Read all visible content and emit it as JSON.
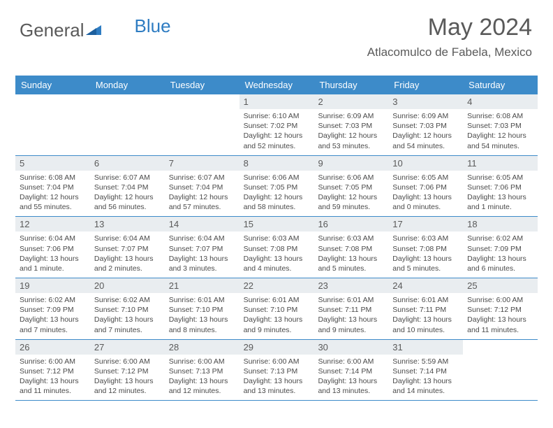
{
  "logo": {
    "text1": "General",
    "text2": "Blue",
    "color1": "#5a5a5a",
    "color2": "#2e7cc2"
  },
  "header": {
    "title": "May 2024",
    "location": "Atlacomulco de Fabela, Mexico"
  },
  "dayNames": [
    "Sunday",
    "Monday",
    "Tuesday",
    "Wednesday",
    "Thursday",
    "Friday",
    "Saturday"
  ],
  "colors": {
    "headerBg": "#3d8bc9",
    "headerText": "#ffffff",
    "daynumBg": "#e9edf0",
    "textColor": "#5a5a5a",
    "borderColor": "#3d8bc9"
  },
  "weeks": [
    [
      {
        "n": "",
        "lines": []
      },
      {
        "n": "",
        "lines": []
      },
      {
        "n": "",
        "lines": []
      },
      {
        "n": "1",
        "lines": [
          "Sunrise: 6:10 AM",
          "Sunset: 7:02 PM",
          "Daylight: 12 hours",
          "and 52 minutes."
        ]
      },
      {
        "n": "2",
        "lines": [
          "Sunrise: 6:09 AM",
          "Sunset: 7:03 PM",
          "Daylight: 12 hours",
          "and 53 minutes."
        ]
      },
      {
        "n": "3",
        "lines": [
          "Sunrise: 6:09 AM",
          "Sunset: 7:03 PM",
          "Daylight: 12 hours",
          "and 54 minutes."
        ]
      },
      {
        "n": "4",
        "lines": [
          "Sunrise: 6:08 AM",
          "Sunset: 7:03 PM",
          "Daylight: 12 hours",
          "and 54 minutes."
        ]
      }
    ],
    [
      {
        "n": "5",
        "lines": [
          "Sunrise: 6:08 AM",
          "Sunset: 7:04 PM",
          "Daylight: 12 hours",
          "and 55 minutes."
        ]
      },
      {
        "n": "6",
        "lines": [
          "Sunrise: 6:07 AM",
          "Sunset: 7:04 PM",
          "Daylight: 12 hours",
          "and 56 minutes."
        ]
      },
      {
        "n": "7",
        "lines": [
          "Sunrise: 6:07 AM",
          "Sunset: 7:04 PM",
          "Daylight: 12 hours",
          "and 57 minutes."
        ]
      },
      {
        "n": "8",
        "lines": [
          "Sunrise: 6:06 AM",
          "Sunset: 7:05 PM",
          "Daylight: 12 hours",
          "and 58 minutes."
        ]
      },
      {
        "n": "9",
        "lines": [
          "Sunrise: 6:06 AM",
          "Sunset: 7:05 PM",
          "Daylight: 12 hours",
          "and 59 minutes."
        ]
      },
      {
        "n": "10",
        "lines": [
          "Sunrise: 6:05 AM",
          "Sunset: 7:06 PM",
          "Daylight: 13 hours",
          "and 0 minutes."
        ]
      },
      {
        "n": "11",
        "lines": [
          "Sunrise: 6:05 AM",
          "Sunset: 7:06 PM",
          "Daylight: 13 hours",
          "and 1 minute."
        ]
      }
    ],
    [
      {
        "n": "12",
        "lines": [
          "Sunrise: 6:04 AM",
          "Sunset: 7:06 PM",
          "Daylight: 13 hours",
          "and 1 minute."
        ]
      },
      {
        "n": "13",
        "lines": [
          "Sunrise: 6:04 AM",
          "Sunset: 7:07 PM",
          "Daylight: 13 hours",
          "and 2 minutes."
        ]
      },
      {
        "n": "14",
        "lines": [
          "Sunrise: 6:04 AM",
          "Sunset: 7:07 PM",
          "Daylight: 13 hours",
          "and 3 minutes."
        ]
      },
      {
        "n": "15",
        "lines": [
          "Sunrise: 6:03 AM",
          "Sunset: 7:08 PM",
          "Daylight: 13 hours",
          "and 4 minutes."
        ]
      },
      {
        "n": "16",
        "lines": [
          "Sunrise: 6:03 AM",
          "Sunset: 7:08 PM",
          "Daylight: 13 hours",
          "and 5 minutes."
        ]
      },
      {
        "n": "17",
        "lines": [
          "Sunrise: 6:03 AM",
          "Sunset: 7:08 PM",
          "Daylight: 13 hours",
          "and 5 minutes."
        ]
      },
      {
        "n": "18",
        "lines": [
          "Sunrise: 6:02 AM",
          "Sunset: 7:09 PM",
          "Daylight: 13 hours",
          "and 6 minutes."
        ]
      }
    ],
    [
      {
        "n": "19",
        "lines": [
          "Sunrise: 6:02 AM",
          "Sunset: 7:09 PM",
          "Daylight: 13 hours",
          "and 7 minutes."
        ]
      },
      {
        "n": "20",
        "lines": [
          "Sunrise: 6:02 AM",
          "Sunset: 7:10 PM",
          "Daylight: 13 hours",
          "and 7 minutes."
        ]
      },
      {
        "n": "21",
        "lines": [
          "Sunrise: 6:01 AM",
          "Sunset: 7:10 PM",
          "Daylight: 13 hours",
          "and 8 minutes."
        ]
      },
      {
        "n": "22",
        "lines": [
          "Sunrise: 6:01 AM",
          "Sunset: 7:10 PM",
          "Daylight: 13 hours",
          "and 9 minutes."
        ]
      },
      {
        "n": "23",
        "lines": [
          "Sunrise: 6:01 AM",
          "Sunset: 7:11 PM",
          "Daylight: 13 hours",
          "and 9 minutes."
        ]
      },
      {
        "n": "24",
        "lines": [
          "Sunrise: 6:01 AM",
          "Sunset: 7:11 PM",
          "Daylight: 13 hours",
          "and 10 minutes."
        ]
      },
      {
        "n": "25",
        "lines": [
          "Sunrise: 6:00 AM",
          "Sunset: 7:12 PM",
          "Daylight: 13 hours",
          "and 11 minutes."
        ]
      }
    ],
    [
      {
        "n": "26",
        "lines": [
          "Sunrise: 6:00 AM",
          "Sunset: 7:12 PM",
          "Daylight: 13 hours",
          "and 11 minutes."
        ]
      },
      {
        "n": "27",
        "lines": [
          "Sunrise: 6:00 AM",
          "Sunset: 7:12 PM",
          "Daylight: 13 hours",
          "and 12 minutes."
        ]
      },
      {
        "n": "28",
        "lines": [
          "Sunrise: 6:00 AM",
          "Sunset: 7:13 PM",
          "Daylight: 13 hours",
          "and 12 minutes."
        ]
      },
      {
        "n": "29",
        "lines": [
          "Sunrise: 6:00 AM",
          "Sunset: 7:13 PM",
          "Daylight: 13 hours",
          "and 13 minutes."
        ]
      },
      {
        "n": "30",
        "lines": [
          "Sunrise: 6:00 AM",
          "Sunset: 7:14 PM",
          "Daylight: 13 hours",
          "and 13 minutes."
        ]
      },
      {
        "n": "31",
        "lines": [
          "Sunrise: 5:59 AM",
          "Sunset: 7:14 PM",
          "Daylight: 13 hours",
          "and 14 minutes."
        ]
      },
      {
        "n": "",
        "lines": []
      }
    ]
  ]
}
